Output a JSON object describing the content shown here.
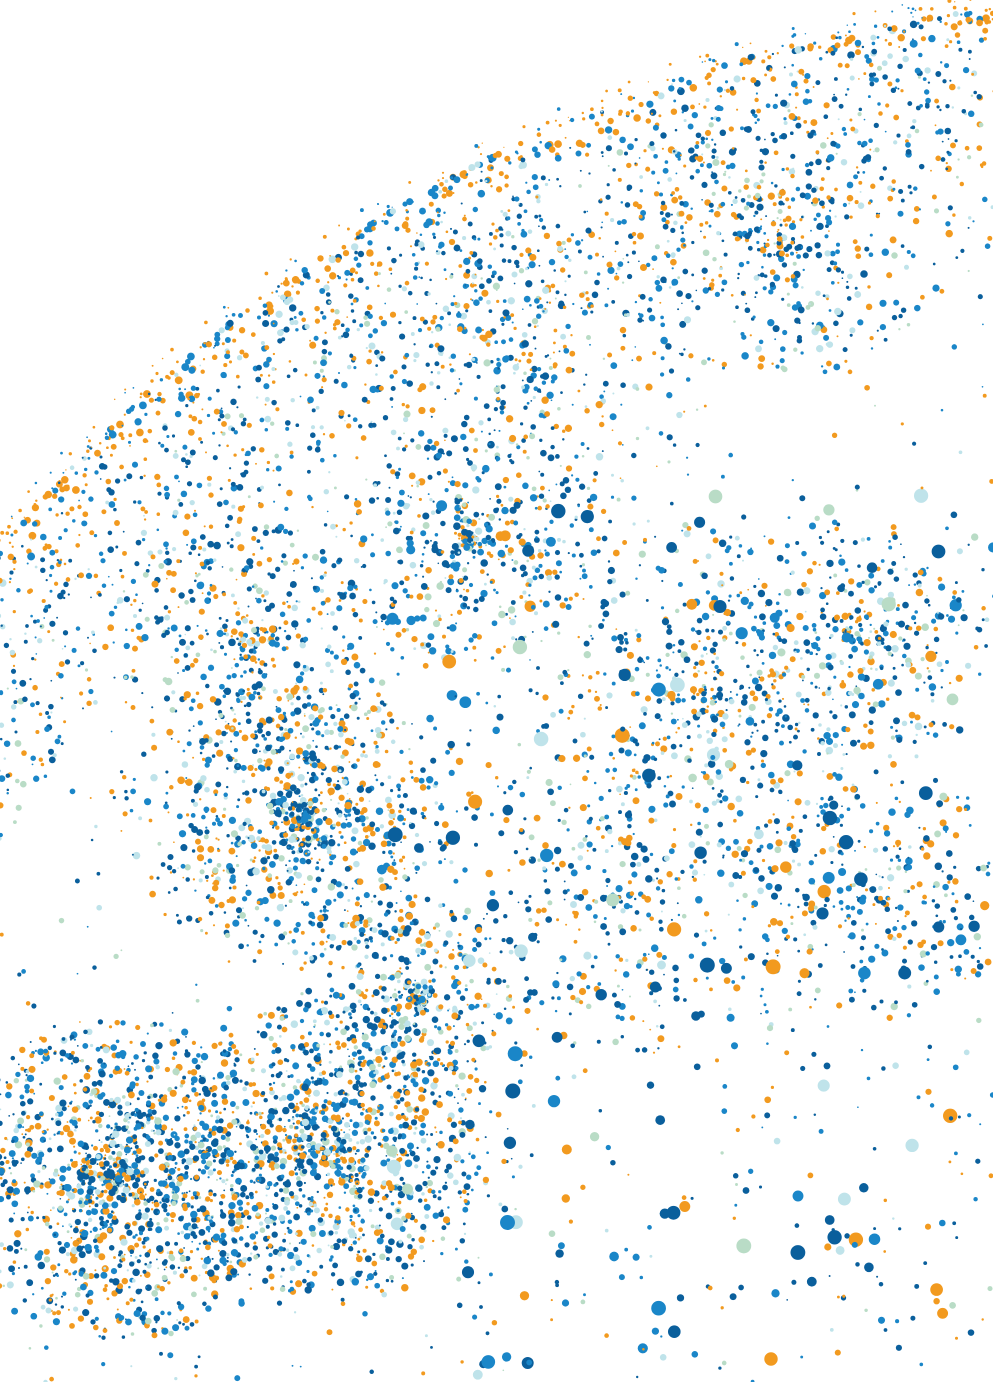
{
  "illustration": {
    "kind": "dotted globe quarter",
    "background": "#ffffff",
    "palette": {
      "dark_blue": "#0a5f9c",
      "blue": "#1a86c8",
      "orange": "#f29a1f",
      "light_blue": "#bfe3ea",
      "mint": "#b9dcc6"
    },
    "text": []
  }
}
